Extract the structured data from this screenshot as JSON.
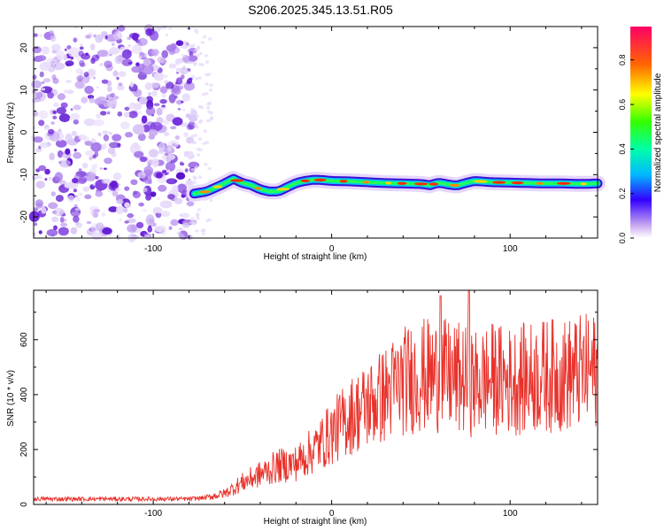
{
  "title": "S206.2025.345.13.51.R05",
  "chart_data": [
    {
      "type": "heatmap",
      "name": "spectrogram",
      "xlabel": "Height of straight line (km)",
      "ylabel": "Frequency (Hz)",
      "xlim": [
        -167,
        149
      ],
      "ylim": [
        -25,
        25
      ],
      "xticks": [
        -100,
        0,
        100
      ],
      "yticks": [
        -20,
        -10,
        0,
        10,
        20
      ],
      "noise_region_x": [
        -167,
        -77
      ],
      "signal_trace": {
        "x": [
          -77,
          -70,
          -62,
          -55,
          -50,
          -45,
          -40,
          -35,
          -30,
          -25,
          -20,
          -15,
          -10,
          -5,
          0,
          10,
          20,
          30,
          40,
          50,
          55,
          60,
          65,
          70,
          75,
          80,
          90,
          100,
          110,
          120,
          130,
          140,
          149
        ],
        "frequency": [
          -14.5,
          -14.0,
          -12.5,
          -11.0,
          -12.0,
          -12.5,
          -13.5,
          -14.0,
          -14.0,
          -13.0,
          -12.0,
          -11.5,
          -11.2,
          -11.3,
          -11.5,
          -11.6,
          -11.8,
          -12.0,
          -12.1,
          -12.2,
          -12.5,
          -11.9,
          -12.3,
          -12.6,
          -12.0,
          -11.5,
          -11.8,
          -11.9,
          -12.0,
          -12.1,
          -12.1,
          -12.2,
          -12.1
        ]
      },
      "colorbar": {
        "label": "Normalized spectral amplitude",
        "ticks": [
          0.0,
          0.2,
          0.4,
          0.6,
          0.8
        ],
        "range": [
          0.0,
          0.95
        ]
      }
    },
    {
      "type": "line",
      "name": "snr",
      "xlabel": "Height of straight line (km)",
      "ylabel": "SNR (10 * v/v)",
      "xlim": [
        -167,
        149
      ],
      "ylim": [
        0,
        780
      ],
      "xticks": [
        -100,
        0,
        100
      ],
      "yticks": [
        0,
        200,
        400,
        600
      ],
      "color": "#e8322b",
      "envelope_x": [
        -167,
        -140,
        -110,
        -80,
        -70,
        -60,
        -50,
        -40,
        -30,
        -20,
        -10,
        0,
        10,
        20,
        30,
        40,
        50,
        60,
        70,
        80,
        90,
        100,
        110,
        120,
        130,
        140,
        149
      ],
      "envelope_mean": [
        20,
        20,
        20,
        20,
        25,
        40,
        80,
        110,
        140,
        150,
        200,
        260,
        320,
        360,
        400,
        450,
        470,
        470,
        460,
        440,
        460,
        450,
        460,
        470,
        470,
        480,
        485
      ],
      "peaks": {
        "x": [
          61,
          77
        ],
        "value": [
          760,
          780
        ]
      }
    }
  ]
}
